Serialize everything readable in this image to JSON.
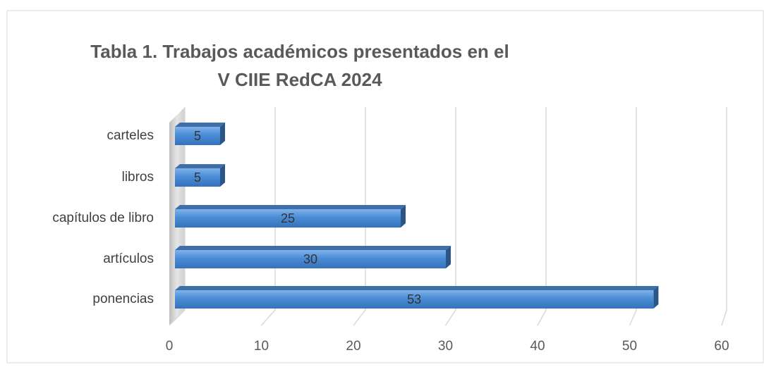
{
  "chart_data": {
    "type": "bar3d",
    "title": [
      "Tabla 1. Trabajos académicos presentados en el",
      "V CIIE RedCA 2024"
    ],
    "categories": [
      "ponencias",
      "artículos",
      "capítulos de libro",
      "libros",
      "carteles"
    ],
    "values": [
      53,
      30,
      25,
      5,
      5
    ],
    "color": "#4a8cd6",
    "xlim": [
      0,
      60
    ],
    "xticks": [
      0,
      10,
      20,
      30,
      40,
      50,
      60
    ],
    "grid": true
  }
}
